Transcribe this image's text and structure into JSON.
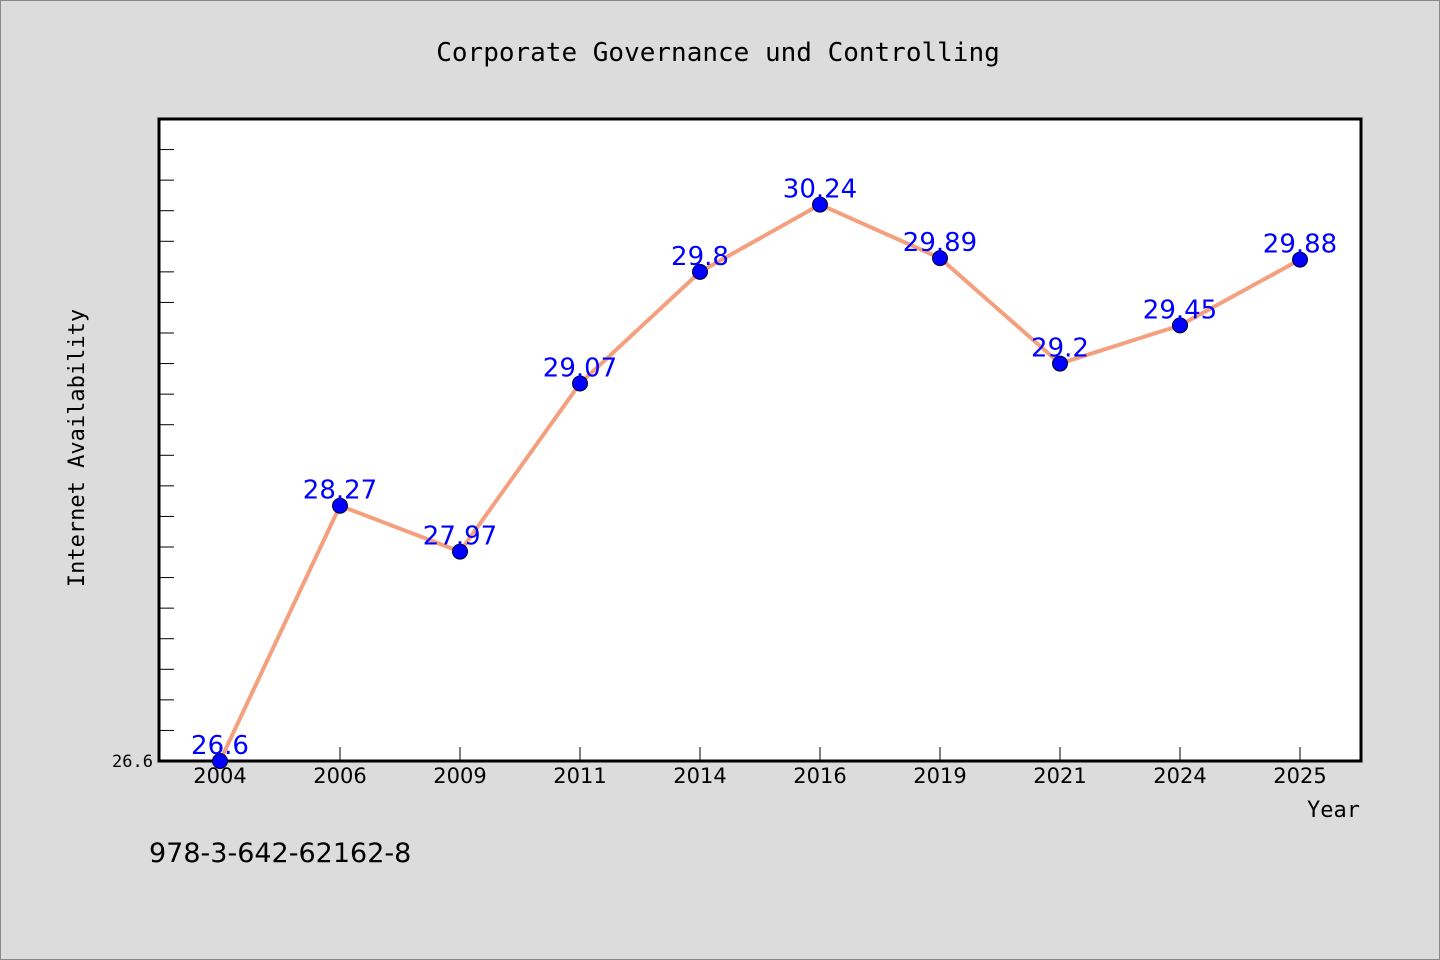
{
  "chart_data": {
    "type": "line",
    "title": "Corporate Governance und Controlling",
    "xlabel": "Year",
    "ylabel": "Internet Availability",
    "categories": [
      "2004",
      "2006",
      "2009",
      "2011",
      "2014",
      "2016",
      "2019",
      "2021",
      "2024",
      "2025"
    ],
    "values": [
      26.6,
      28.27,
      27.97,
      29.07,
      29.8,
      30.24,
      29.89,
      29.2,
      29.45,
      29.88
    ],
    "data_labels": [
      "26.6",
      "28.27",
      "27.97",
      "29.07",
      "29.8",
      "30.24",
      "29.89",
      "29.2",
      "29.45",
      "29.88"
    ],
    "y_tick_labels": [
      "26.6"
    ],
    "ylim": [
      26.6,
      30.8
    ],
    "grid": false,
    "legend": "none",
    "colors": {
      "line": "#f4a07e",
      "marker": "#0000ff",
      "label": "#0000ff",
      "background": "#dcdcdc",
      "plot_bg": "#ffffff"
    }
  },
  "footer": {
    "isbn": "978-3-642-62162-8"
  }
}
